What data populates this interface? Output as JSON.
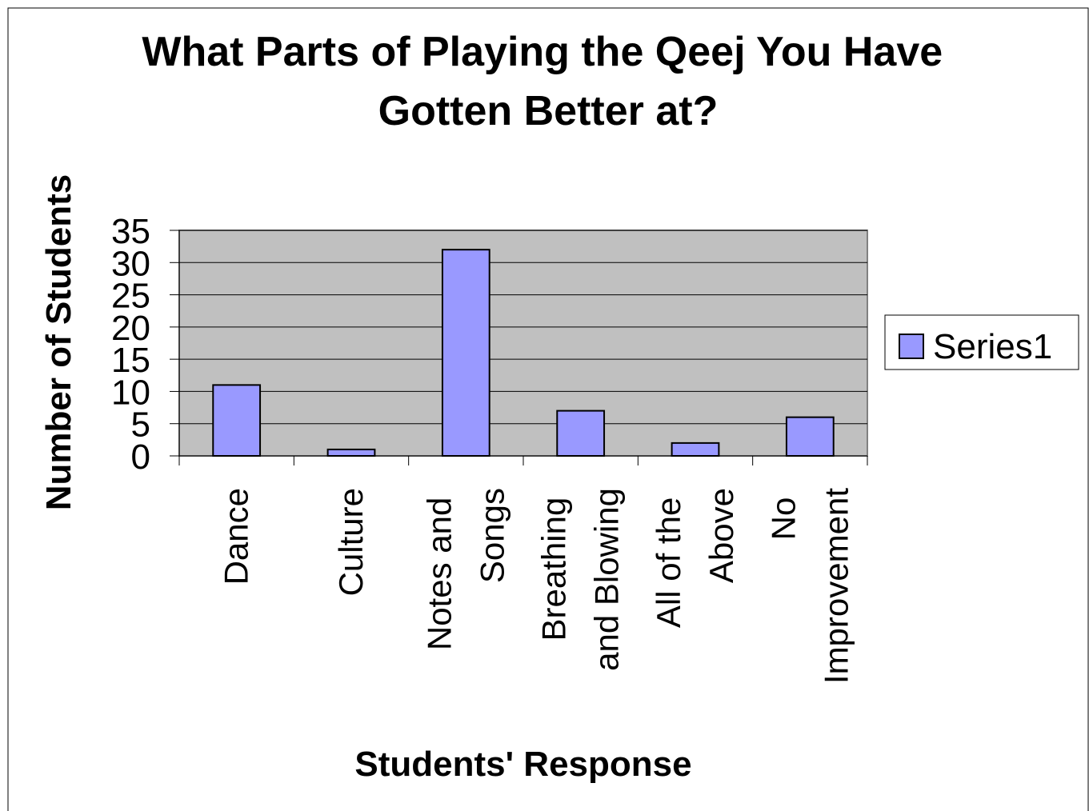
{
  "chart_data": {
    "type": "bar",
    "title": "What Parts of Playing the Qeej You Have Gotten Better at?",
    "x_label": "Students' Response",
    "y_label": "Number of Students",
    "categories": [
      "Dance",
      "Culture",
      "Notes and Songs",
      "Breathing and Blowing",
      "All of the Above",
      "No Improvement"
    ],
    "series": [
      {
        "name": "Series1",
        "color": "#9999ff",
        "values": [
          11,
          1,
          32,
          7,
          2,
          6
        ]
      }
    ],
    "ylim": [
      0,
      35
    ],
    "yticks": [
      0,
      5,
      10,
      15,
      20,
      25,
      30,
      35
    ],
    "grid": true,
    "legend": "right"
  }
}
